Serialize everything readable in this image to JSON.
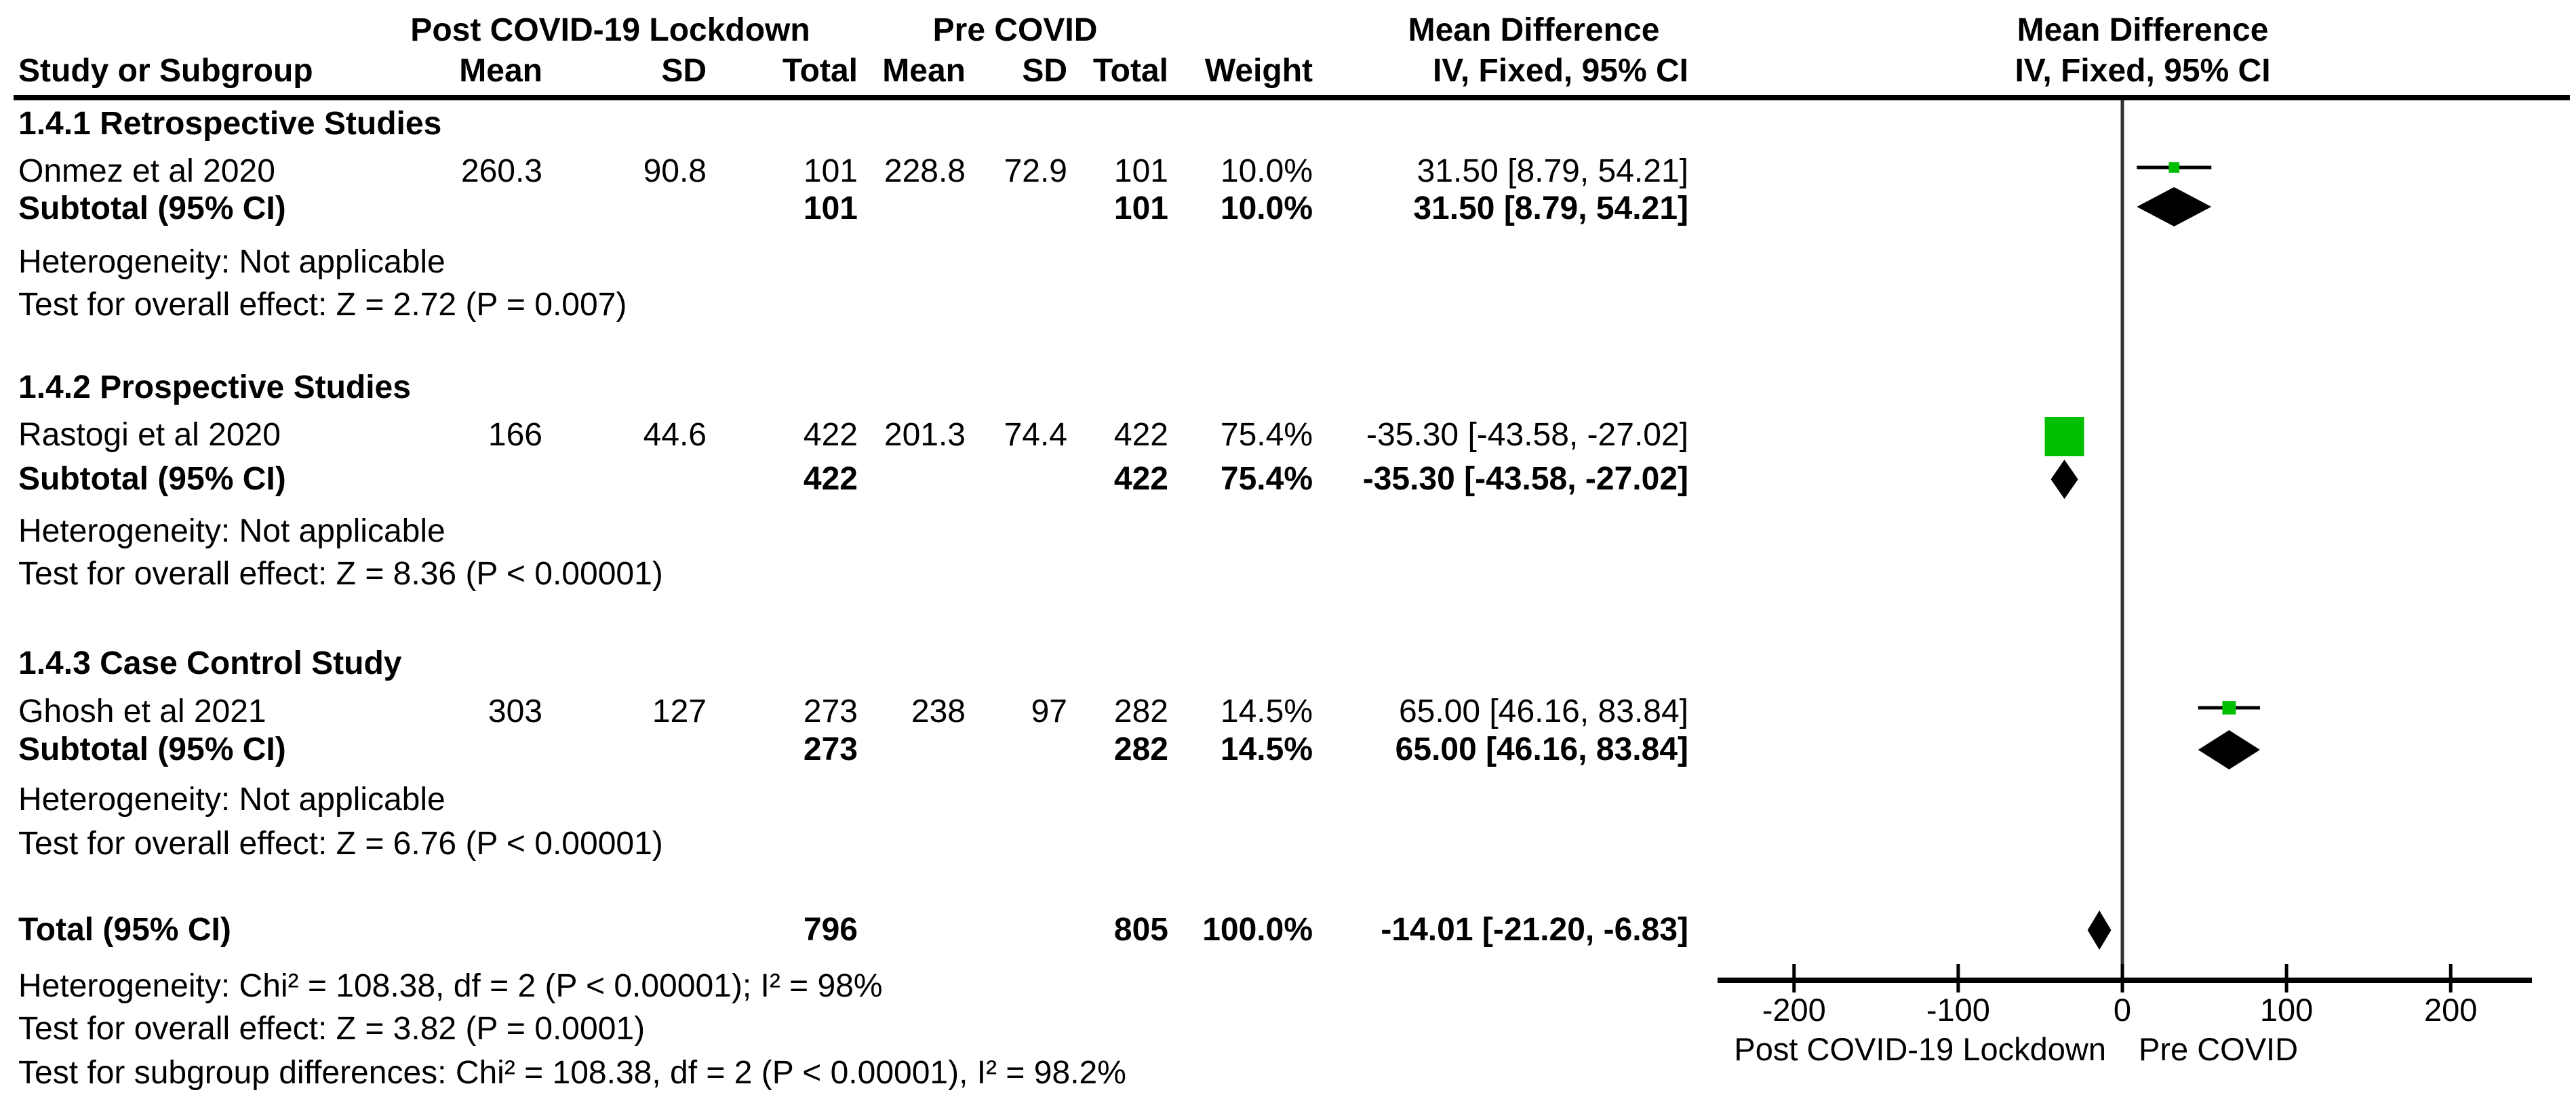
{
  "header": {
    "study_col": "Study or Subgroup",
    "group_post": "Post COVID-19 Lockdown",
    "group_pre": "Pre COVID",
    "mean": "Mean",
    "sd": "SD",
    "total": "Total",
    "weight": "Weight",
    "md_title": "Mean Difference",
    "md_sub": "IV, Fixed, 95% CI",
    "plot_md_title": "Mean Difference",
    "plot_md_sub": "IV, Fixed, 95% CI"
  },
  "sections": [
    {
      "title": "1.4.1 Retrospective Studies",
      "studies": [
        {
          "name": "Onmez et al 2020",
          "post_mean": "260.3",
          "post_sd": "90.8",
          "post_total": "101",
          "pre_mean": "228.8",
          "pre_sd": "72.9",
          "pre_total": "101",
          "weight": "10.0%",
          "ci": "31.50 [8.79, 54.21]"
        }
      ],
      "subtotal": {
        "label": "Subtotal (95% CI)",
        "post_total": "101",
        "pre_total": "101",
        "weight": "10.0%",
        "ci": "31.50 [8.79, 54.21]"
      },
      "heterogeneity": "Heterogeneity: Not applicable",
      "overall_test": "Test for overall effect: Z = 2.72 (P = 0.007)"
    },
    {
      "title": "1.4.2 Prospective Studies",
      "studies": [
        {
          "name": "Rastogi et al 2020",
          "post_mean": "166",
          "post_sd": "44.6",
          "post_total": "422",
          "pre_mean": "201.3",
          "pre_sd": "74.4",
          "pre_total": "422",
          "weight": "75.4%",
          "ci": "-35.30 [-43.58, -27.02]"
        }
      ],
      "subtotal": {
        "label": "Subtotal (95% CI)",
        "post_total": "422",
        "pre_total": "422",
        "weight": "75.4%",
        "ci": "-35.30 [-43.58, -27.02]"
      },
      "heterogeneity": "Heterogeneity: Not applicable",
      "overall_test": "Test for overall effect: Z = 8.36 (P < 0.00001)"
    },
    {
      "title": "1.4.3 Case Control Study",
      "studies": [
        {
          "name": "Ghosh et al 2021",
          "post_mean": "303",
          "post_sd": "127",
          "post_total": "273",
          "pre_mean": "238",
          "pre_sd": "97",
          "pre_total": "282",
          "weight": "14.5%",
          "ci": "65.00 [46.16, 83.84]"
        }
      ],
      "subtotal": {
        "label": "Subtotal (95% CI)",
        "post_total": "273",
        "pre_total": "282",
        "weight": "14.5%",
        "ci": "65.00 [46.16, 83.84]"
      },
      "heterogeneity": "Heterogeneity: Not applicable",
      "overall_test": "Test for overall effect: Z = 6.76 (P < 0.00001)"
    }
  ],
  "total_row": {
    "label": "Total (95% CI)",
    "post_total": "796",
    "pre_total": "805",
    "weight": "100.0%",
    "ci": "-14.01 [-21.20, -6.83]"
  },
  "footer": {
    "heterogeneity": "Heterogeneity: Chi² = 108.38, df = 2 (P < 0.00001); I² = 98%",
    "overall_test": "Test for overall effect: Z = 3.82 (P = 0.0001)",
    "subgroup_test": "Test for subgroup differences: Chi² = 108.38, df = 2 (P < 0.00001), I² = 98.2%"
  },
  "axis": {
    "tick_labels": [
      "-200",
      "-100",
      "0",
      "100",
      "200"
    ],
    "left_label": "Post COVID-19 Lockdown",
    "right_label": "Pre COVID"
  },
  "colors": {
    "marker_green": "#00BF00",
    "diamond_black": "#000000",
    "axis_black": "#000000",
    "zero_line_gray": "#333333"
  },
  "chart_data": {
    "type": "forest",
    "measure": "Mean Difference, IV, Fixed, 95% CI",
    "xlim": [
      -250,
      250
    ],
    "ticks": [
      -200,
      -100,
      0,
      100,
      200
    ],
    "xlabel_left": "Post COVID-19 Lockdown",
    "xlabel_right": "Pre COVID",
    "entries": [
      {
        "row": "study1",
        "label": "Onmez et al 2020",
        "md": 31.5,
        "lo": 8.79,
        "hi": 54.21,
        "weight_pct": 10.0,
        "shape": "square"
      },
      {
        "row": "sub1",
        "label": "Subtotal 1.4.1",
        "md": 31.5,
        "lo": 8.79,
        "hi": 54.21,
        "shape": "diamond"
      },
      {
        "row": "study2",
        "label": "Rastogi et al 2020",
        "md": -35.3,
        "lo": -43.58,
        "hi": -27.02,
        "weight_pct": 75.4,
        "shape": "square"
      },
      {
        "row": "sub2",
        "label": "Subtotal 1.4.2",
        "md": -35.3,
        "lo": -43.58,
        "hi": -27.02,
        "shape": "diamond"
      },
      {
        "row": "study3",
        "label": "Ghosh et al 2021",
        "md": 65.0,
        "lo": 46.16,
        "hi": 83.84,
        "weight_pct": 14.5,
        "shape": "square"
      },
      {
        "row": "sub3",
        "label": "Subtotal 1.4.3",
        "md": 65.0,
        "lo": 46.16,
        "hi": 83.84,
        "shape": "diamond"
      },
      {
        "row": "total",
        "label": "Total",
        "md": -14.01,
        "lo": -21.2,
        "hi": -6.83,
        "shape": "diamond"
      }
    ]
  }
}
